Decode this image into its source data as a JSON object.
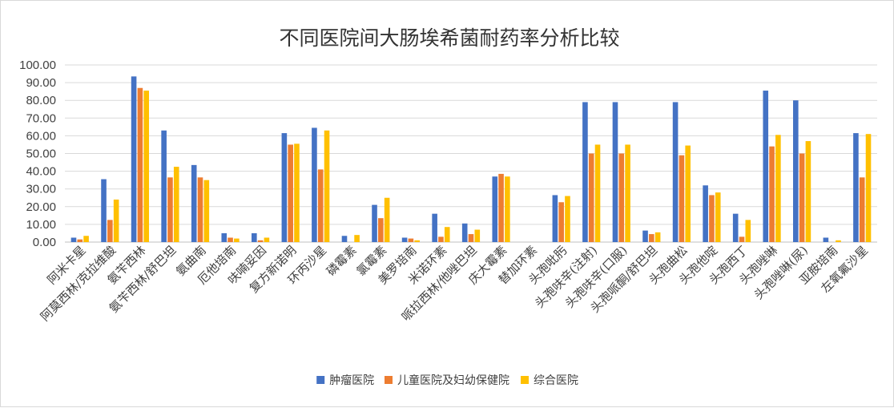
{
  "chart_data": {
    "type": "bar",
    "title": "不同医院间大肠埃希菌耐药率分析比较",
    "xlabel": "",
    "ylabel": "",
    "ylim": [
      0,
      100
    ],
    "yticks": [
      "0.00",
      "10.00",
      "20.00",
      "30.00",
      "40.00",
      "50.00",
      "60.00",
      "70.00",
      "80.00",
      "90.00",
      "100.00"
    ],
    "grid": true,
    "legend_position": "bottom",
    "categories": [
      "阿米卡星",
      "阿莫西林/克拉维酸",
      "氨苄西林",
      "氨苄西林/舒巴坦",
      "氨曲南",
      "厄他培南",
      "呋喃妥因",
      "复方新诺明",
      "环丙沙星",
      "磷霉素",
      "氯霉素",
      "美罗培南",
      "米诺环素",
      "哌拉西林/他唑巴坦",
      "庆大霉素",
      "替加环素",
      "头孢吡肟",
      "头孢呋辛(注射)",
      "头孢呋辛(口服)",
      "头孢哌酮/舒巴坦",
      "头孢曲松",
      "头孢他啶",
      "头孢西丁",
      "头孢唑啉",
      "头孢唑啉(尿)",
      "亚胺培南",
      "左氧氟沙星"
    ],
    "series": [
      {
        "name": "肿瘤医院",
        "color": "#4472C4",
        "values": [
          2.5,
          35.5,
          93.5,
          63.0,
          43.5,
          5.0,
          5.0,
          61.5,
          64.5,
          3.5,
          21.0,
          2.5,
          16.0,
          10.5,
          37.0,
          0.0,
          26.5,
          79.0,
          79.0,
          6.5,
          79.0,
          32.0,
          16.0,
          85.5,
          80.0,
          2.5,
          61.5
        ]
      },
      {
        "name": "儿童医院及妇幼保健院",
        "color": "#ED7D31",
        "values": [
          1.5,
          12.5,
          87.0,
          36.5,
          36.5,
          2.5,
          1.0,
          55.0,
          41.0,
          0.0,
          13.5,
          2.0,
          3.0,
          4.5,
          38.5,
          0.0,
          22.5,
          50.0,
          50.0,
          4.5,
          49.0,
          26.5,
          3.0,
          54.0,
          50.0,
          0.0,
          36.5
        ]
      },
      {
        "name": "综合医院",
        "color": "#FFC000",
        "values": [
          3.5,
          24.0,
          85.5,
          42.5,
          35.0,
          2.0,
          2.5,
          55.5,
          63.0,
          4.0,
          25.0,
          1.0,
          8.5,
          7.0,
          37.0,
          0.0,
          26.0,
          55.0,
          55.0,
          5.5,
          54.5,
          28.0,
          12.5,
          60.5,
          57.0,
          1.0,
          61.0
        ]
      }
    ]
  }
}
